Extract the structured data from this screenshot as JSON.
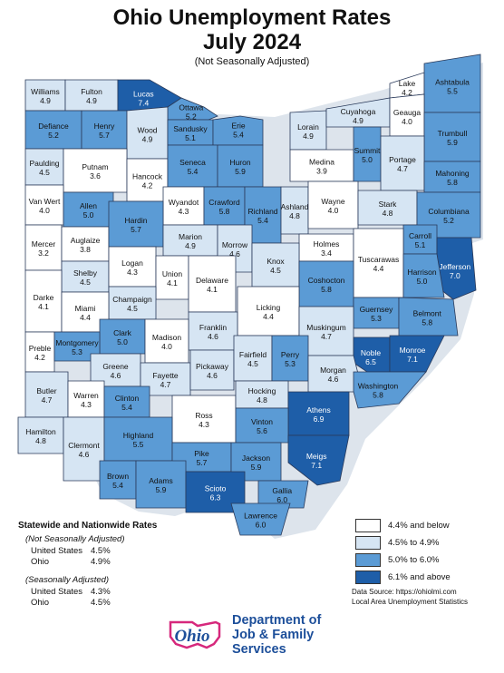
{
  "title": "Ohio Unemployment Rates",
  "subtitle": "July 2024",
  "note": "(Not Seasonally Adjusted)",
  "colors": {
    "bin1": "#ffffff",
    "bin2": "#d6e5f3",
    "bin3": "#5b9bd5",
    "bin4": "#1e5ea8",
    "border": "#2a3a5a",
    "lake": "#ffffff",
    "logo_blue": "#1d4f9a",
    "logo_pink": "#d6287c"
  },
  "counties": [
    {
      "name": "Williams",
      "rate": "4.9"
    },
    {
      "name": "Fulton",
      "rate": "4.9"
    },
    {
      "name": "Lucas",
      "rate": "7.4"
    },
    {
      "name": "Ottawa",
      "rate": "5.2"
    },
    {
      "name": "Lake",
      "rate": "4.2"
    },
    {
      "name": "Ashtabula",
      "rate": "5.5"
    },
    {
      "name": "Defiance",
      "rate": "5.2"
    },
    {
      "name": "Henry",
      "rate": "5.7"
    },
    {
      "name": "Wood",
      "rate": "4.9"
    },
    {
      "name": "Sandusky",
      "rate": "5.1"
    },
    {
      "name": "Erie",
      "rate": "5.4"
    },
    {
      "name": "Lorain",
      "rate": "4.9"
    },
    {
      "name": "Cuyahoga",
      "rate": "4.9"
    },
    {
      "name": "Geauga",
      "rate": "4.0"
    },
    {
      "name": "Trumbull",
      "rate": "5.9"
    },
    {
      "name": "Paulding",
      "rate": "4.5"
    },
    {
      "name": "Putnam",
      "rate": "3.6"
    },
    {
      "name": "Hancock",
      "rate": "4.2"
    },
    {
      "name": "Seneca",
      "rate": "5.4"
    },
    {
      "name": "Huron",
      "rate": "5.9"
    },
    {
      "name": "Medina",
      "rate": "3.9"
    },
    {
      "name": "Summit",
      "rate": "5.0"
    },
    {
      "name": "Portage",
      "rate": "4.7"
    },
    {
      "name": "Mahoning",
      "rate": "5.8"
    },
    {
      "name": "Van Wert",
      "rate": "4.0"
    },
    {
      "name": "Allen",
      "rate": "5.0"
    },
    {
      "name": "Wyandot",
      "rate": "4.3"
    },
    {
      "name": "Crawford",
      "rate": "5.8"
    },
    {
      "name": "Richland",
      "rate": "5.4"
    },
    {
      "name": "Ashland",
      "rate": "4.8"
    },
    {
      "name": "Wayne",
      "rate": "4.0"
    },
    {
      "name": "Stark",
      "rate": "4.8"
    },
    {
      "name": "Columbiana",
      "rate": "5.2"
    },
    {
      "name": "Mercer",
      "rate": "3.2"
    },
    {
      "name": "Auglaize",
      "rate": "3.8"
    },
    {
      "name": "Hardin",
      "rate": "5.7"
    },
    {
      "name": "Marion",
      "rate": "4.9"
    },
    {
      "name": "Morrow",
      "rate": "4.6"
    },
    {
      "name": "Holmes",
      "rate": "3.4"
    },
    {
      "name": "Carroll",
      "rate": "5.1"
    },
    {
      "name": "Tuscarawas",
      "rate": "4.4"
    },
    {
      "name": "Jefferson",
      "rate": "7.0"
    },
    {
      "name": "Shelby",
      "rate": "4.5"
    },
    {
      "name": "Logan",
      "rate": "4.3"
    },
    {
      "name": "Union",
      "rate": "4.1"
    },
    {
      "name": "Delaware",
      "rate": "4.1"
    },
    {
      "name": "Knox",
      "rate": "4.5"
    },
    {
      "name": "Coshocton",
      "rate": "5.8"
    },
    {
      "name": "Harrison",
      "rate": "5.0"
    },
    {
      "name": "Darke",
      "rate": "4.1"
    },
    {
      "name": "Champaign",
      "rate": "4.5"
    },
    {
      "name": "Miami",
      "rate": "4.4"
    },
    {
      "name": "Licking",
      "rate": "4.4"
    },
    {
      "name": "Guernsey",
      "rate": "5.3"
    },
    {
      "name": "Belmont",
      "rate": "5.8"
    },
    {
      "name": "Franklin",
      "rate": "4.6"
    },
    {
      "name": "Muskingum",
      "rate": "4.7"
    },
    {
      "name": "Clark",
      "rate": "5.0"
    },
    {
      "name": "Madison",
      "rate": "4.0"
    },
    {
      "name": "Noble",
      "rate": "6.5"
    },
    {
      "name": "Monroe",
      "rate": "7.1"
    },
    {
      "name": "Preble",
      "rate": "4.2"
    },
    {
      "name": "Montgomery",
      "rate": "5.3"
    },
    {
      "name": "Greene",
      "rate": "4.6"
    },
    {
      "name": "Fayette",
      "rate": "4.7"
    },
    {
      "name": "Pickaway",
      "rate": "4.6"
    },
    {
      "name": "Fairfield",
      "rate": "4.5"
    },
    {
      "name": "Perry",
      "rate": "5.3"
    },
    {
      "name": "Morgan",
      "rate": "4.6"
    },
    {
      "name": "Washington",
      "rate": "5.8"
    },
    {
      "name": "Butler",
      "rate": "4.7"
    },
    {
      "name": "Warren",
      "rate": "4.3"
    },
    {
      "name": "Clinton",
      "rate": "5.4"
    },
    {
      "name": "Ross",
      "rate": "4.3"
    },
    {
      "name": "Hocking",
      "rate": "4.8"
    },
    {
      "name": "Athens",
      "rate": "6.9"
    },
    {
      "name": "Vinton",
      "rate": "5.6"
    },
    {
      "name": "Hamilton",
      "rate": "4.8"
    },
    {
      "name": "Clermont",
      "rate": "4.6"
    },
    {
      "name": "Highland",
      "rate": "5.5"
    },
    {
      "name": "Meigs",
      "rate": "7.1"
    },
    {
      "name": "Pike",
      "rate": "5.7"
    },
    {
      "name": "Jackson",
      "rate": "5.9"
    },
    {
      "name": "Brown",
      "rate": "5.4"
    },
    {
      "name": "Adams",
      "rate": "5.9"
    },
    {
      "name": "Scioto",
      "rate": "6.3"
    },
    {
      "name": "Gallia",
      "rate": "6.0"
    },
    {
      "name": "Lawrence",
      "rate": "6.0"
    }
  ],
  "stats": {
    "heading": "Statewide and Nationwide Rates",
    "nsa_label": "(Not Seasonally Adjusted)",
    "nsa_us_label": "United States",
    "nsa_us_value": "4.5%",
    "nsa_oh_label": "Ohio",
    "nsa_oh_value": "4.9%",
    "sa_label": "(Seasonally Adjusted)",
    "sa_us_label": "United States",
    "sa_us_value": "4.3%",
    "sa_oh_label": "Ohio",
    "sa_oh_value": "4.5%"
  },
  "legend": [
    {
      "label": "4.4% and below"
    },
    {
      "label": "4.5% to 4.9%"
    },
    {
      "label": "5.0% to 6.0%"
    },
    {
      "label": "6.1% and above"
    }
  ],
  "source": {
    "line1": "Data Source: https://ohiolmi.com",
    "line2": "Local Area Unemployment Statistics"
  },
  "logo": {
    "word": "Ohio",
    "line1": "Department of",
    "line2": "Job & Family",
    "line3": "Services"
  }
}
